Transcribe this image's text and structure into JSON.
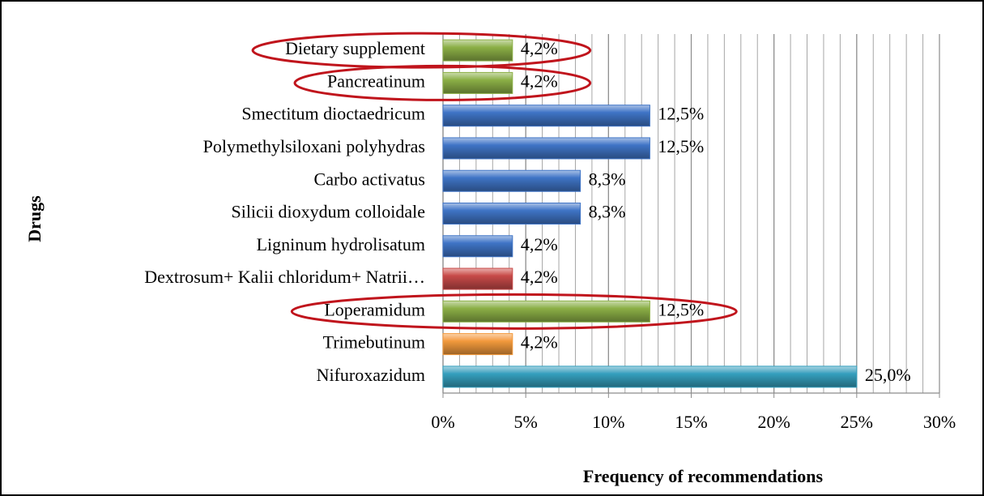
{
  "chart_data": {
    "type": "bar",
    "orientation": "horizontal",
    "x_label": "Frequency of recommendations",
    "y_label": "Drugs",
    "categories": [
      "Dietary supplement",
      "Pancreatinum",
      "Smectitum dioctaedricum",
      "Polymethylsiloxani polyhydras",
      "Carbo activatus",
      "Silicii dioxydum colloidale",
      "Ligninum hydrolisatum",
      "Dextrosum+ Kalii chloridum+ Natrii…",
      "Loperamidum",
      "Trimebutinum",
      "Nifuroxazidum"
    ],
    "values": [
      4.2,
      4.2,
      12.5,
      12.5,
      8.3,
      8.3,
      4.2,
      4.2,
      12.5,
      4.2,
      25.0
    ],
    "value_labels": [
      "4,2%",
      "4,2%",
      "12,5%",
      "12,5%",
      "8,3%",
      "8,3%",
      "4,2%",
      "4,2%",
      "12,5%",
      "4,2%",
      "25,0%"
    ],
    "colors": [
      "#8cb046",
      "#8cb046",
      "#3f74c6",
      "#3f74c6",
      "#3f74c6",
      "#3f74c6",
      "#3f74c6",
      "#c84a49",
      "#8cb046",
      "#f39a3c",
      "#35a0be"
    ],
    "highlighted": [
      true,
      true,
      false,
      false,
      false,
      false,
      false,
      false,
      true,
      false,
      false
    ],
    "highlight_color": "#c0141c",
    "xlim": [
      0,
      30
    ],
    "xticks": [
      {
        "value": 0,
        "label": "0%"
      },
      {
        "value": 5,
        "label": "5%"
      },
      {
        "value": 10,
        "label": "10%"
      },
      {
        "value": 15,
        "label": "15%"
      },
      {
        "value": 20,
        "label": "20%"
      },
      {
        "value": 25,
        "label": "25%"
      },
      {
        "value": 30,
        "label": "30%"
      }
    ],
    "grid": true,
    "minor_grid_step": 1
  }
}
